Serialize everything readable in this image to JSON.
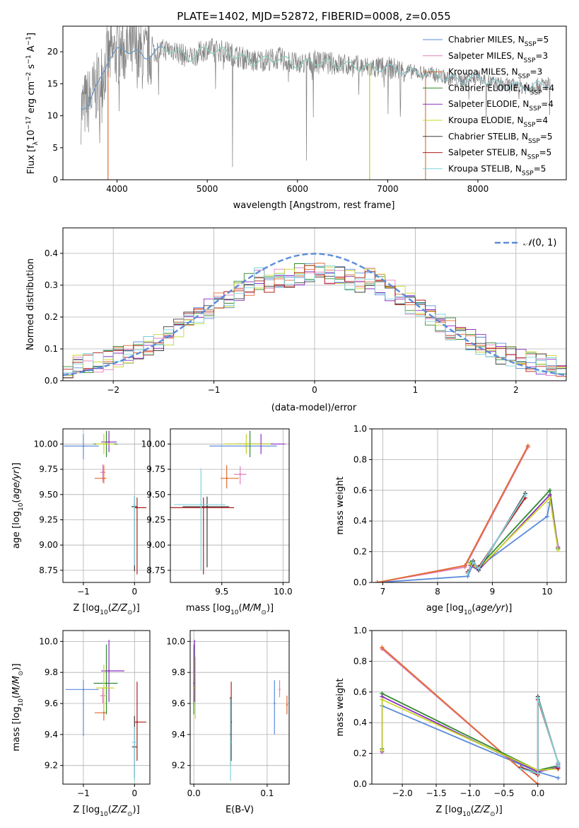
{
  "figure": {
    "title": "PLATE=1402, MJD=52872, FIBERID=0008, z=0.055"
  },
  "colors": {
    "chabrier_miles": "#5b8bd9",
    "salpeter_miles": "#e07fb8",
    "kroupa_miles": "#e06a30",
    "chabrier_elodie": "#2f8a2f",
    "salpeter_elodie": "#8e2ec2",
    "kroupa_elodie": "#c8d62a",
    "chabrier_stelib": "#3d3d3d",
    "salpeter_stelib": "#b01c1c",
    "kroupa_stelib": "#7fd3dc",
    "data": "#808080",
    "normal": "#5b8bd9",
    "grid": "#b0b0b0"
  },
  "chart_data": [
    {
      "type": "line",
      "id": "spectrum",
      "title": "PLATE=1402, MJD=52872, FIBERID=0008, z=0.055",
      "xlabel": "wavelength [Angstrom, rest frame]",
      "ylabel": "Flux [f_λ 10^-17 erg cm^-2 s^-1 A^-1]",
      "xlim": [
        3400,
        8980
      ],
      "ylim": [
        0,
        24
      ],
      "xticks": [
        4000,
        5000,
        6000,
        7000,
        8000
      ],
      "yticks": [
        0,
        5,
        10,
        15,
        20
      ],
      "grid": false,
      "legend_position": "upper right",
      "legend": [
        {
          "name": "Chabrier MILES",
          "nssp": "5"
        },
        {
          "name": "Salpeter MILES",
          "nssp": "3"
        },
        {
          "name": "Kroupa MILES",
          "nssp": "3"
        },
        {
          "name": "Chabrier ELODIE",
          "nssp": "4"
        },
        {
          "name": "Salpeter ELODIE",
          "nssp": "4"
        },
        {
          "name": "Kroupa ELODIE",
          "nssp": "4"
        },
        {
          "name": "Chabrier STELIB",
          "nssp": "5"
        },
        {
          "name": "Salpeter STELIB",
          "nssp": "5"
        },
        {
          "name": "Kroupa STELIB",
          "nssp": "5"
        }
      ],
      "continuum": {
        "x": [
          3600,
          3700,
          3800,
          3900,
          4000,
          4100,
          4200,
          4300,
          4400,
          4600,
          4800,
          5000,
          5200,
          5500,
          5800,
          6000,
          6200,
          6500,
          6800,
          7000,
          7200,
          7500,
          7800,
          8000,
          8200,
          8500,
          8800
        ],
        "y": [
          11,
          12.5,
          15,
          19,
          20,
          20.5,
          20,
          19,
          20,
          20.5,
          19,
          20.5,
          20,
          18.5,
          19,
          18,
          18.5,
          18,
          17.5,
          17.5,
          17,
          16.5,
          15.5,
          16,
          15,
          14.5,
          15
        ]
      },
      "model_ranges": {
        "miles_salpeter_kroupa": [
          3700,
          7420
        ],
        "elodie": [
          3900,
          6800
        ],
        "stelib_chabrier_miles": [
          3600,
          8800
        ]
      }
    },
    {
      "type": "line",
      "id": "residuals",
      "xlabel": "(data-model)/error",
      "ylabel": "Normed distribution",
      "xlim": [
        -2.5,
        2.5
      ],
      "ylim": [
        0,
        0.48
      ],
      "xticks": [
        -2,
        -1,
        0,
        1,
        2
      ],
      "yticks": [
        0.0,
        0.1,
        0.2,
        0.3,
        0.4
      ],
      "grid": true,
      "legend": [
        {
          "name": "N(0,1)"
        }
      ],
      "legend_position": "upper right",
      "bin_width": 0.1,
      "note_normal": "gaussian N(0,1) dashed"
    },
    {
      "type": "scatter",
      "id": "age_vs_Z",
      "xlabel": "Z [log10(Z/Z⊙)]",
      "ylabel": "age [log10(age/yr)]",
      "xlim": [
        -1.4,
        0.3
      ],
      "ylim": [
        8.63,
        10.15
      ],
      "xticks": [
        -1,
        0
      ],
      "yticks": [
        8.75,
        9.0,
        9.25,
        9.5,
        9.75,
        10.0
      ],
      "grid": true,
      "points": [
        {
          "model": "chabrier_miles",
          "x": -1.0,
          "y": 9.98,
          "xerr": [
            0.38,
            0.3
          ],
          "yerr": [
            0.13,
            0.12
          ]
        },
        {
          "model": "salpeter_miles",
          "x": -0.62,
          "y": 9.72,
          "xerr": [
            0.05,
            0.05
          ],
          "yerr": [
            0.1,
            0.08
          ]
        },
        {
          "model": "kroupa_miles",
          "x": -0.6,
          "y": 9.66,
          "xerr": [
            0.18,
            0.05
          ],
          "yerr": [
            0.05,
            0.13
          ]
        },
        {
          "model": "chabrier_elodie",
          "x": -0.55,
          "y": 10.0,
          "xerr": [
            0.25,
            0.22
          ],
          "yerr": [
            0.13,
            0.13
          ]
        },
        {
          "model": "salpeter_elodie",
          "x": -0.5,
          "y": 10.02,
          "xerr": [
            0.15,
            0.15
          ],
          "yerr": [
            0.1,
            0.11
          ]
        },
        {
          "model": "kroupa_elodie",
          "x": -0.6,
          "y": 10.0,
          "xerr": [
            0.15,
            0.2
          ],
          "yerr": [
            0.1,
            0.1
          ]
        },
        {
          "model": "chabrier_stelib",
          "x": 0.0,
          "y": 9.38,
          "xerr": [
            0.06,
            0.05
          ],
          "yerr": [
            0.64,
            0.1
          ]
        },
        {
          "model": "salpeter_stelib",
          "x": 0.05,
          "y": 9.37,
          "xerr": [
            0.05,
            0.18
          ],
          "yerr": [
            0.66,
            0.1
          ]
        },
        {
          "model": "kroupa_stelib",
          "x": 0.0,
          "y": 9.4,
          "xerr": [
            0.02,
            0.02
          ],
          "yerr": [
            0.6,
            0.08
          ]
        }
      ]
    },
    {
      "type": "scatter",
      "id": "age_vs_mass",
      "xlabel": "mass [log10(M/M⊙)]",
      "ylabel": "",
      "xlim": [
        9.08,
        10.05
      ],
      "ylim": [
        8.63,
        10.15
      ],
      "xticks": [
        9.5,
        10.0
      ],
      "yticks": [
        8.75,
        9.0,
        9.25,
        9.5,
        9.75,
        10.0
      ],
      "grid": true,
      "points": [
        {
          "model": "chabrier_miles",
          "x": 9.7,
          "y": 9.98,
          "xerr": [
            0.3,
            0.25
          ],
          "yerr": [
            0.03,
            0.03
          ]
        },
        {
          "model": "salpeter_miles",
          "x": 9.65,
          "y": 9.7,
          "xerr": [
            0.05,
            0.05
          ],
          "yerr": [
            0.1,
            0.08
          ]
        },
        {
          "model": "kroupa_miles",
          "x": 9.54,
          "y": 9.66,
          "xerr": [
            0.05,
            0.1
          ],
          "yerr": [
            0.1,
            0.13
          ]
        },
        {
          "model": "chabrier_elodie",
          "x": 9.73,
          "y": 10.0,
          "xerr": [
            0.2,
            0.2
          ],
          "yerr": [
            0.13,
            0.13
          ]
        },
        {
          "model": "salpeter_elodie",
          "x": 9.82,
          "y": 10.0,
          "xerr": [
            0.2,
            0.2
          ],
          "yerr": [
            0.1,
            0.1
          ]
        },
        {
          "model": "kroupa_elodie",
          "x": 9.7,
          "y": 10.0,
          "xerr": [
            0.18,
            0.2
          ],
          "yerr": [
            0.1,
            0.1
          ]
        },
        {
          "model": "chabrier_stelib",
          "x": 9.38,
          "y": 9.38,
          "xerr": [
            0.2,
            0.18
          ],
          "yerr": [
            0.6,
            0.1
          ]
        },
        {
          "model": "salpeter_stelib",
          "x": 9.35,
          "y": 9.37,
          "xerr": [
            0.28,
            0.25
          ],
          "yerr": [
            0.66,
            0.1
          ]
        },
        {
          "model": "kroupa_stelib",
          "x": 9.33,
          "y": 9.4,
          "xerr": [
            0.22,
            0.2
          ],
          "yerr": [
            0.65,
            0.36
          ]
        }
      ]
    },
    {
      "type": "line",
      "id": "weight_vs_age",
      "xlabel": "age [log10(age/yr)]",
      "ylabel": "mass weight",
      "xlim": [
        6.8,
        10.35
      ],
      "ylim": [
        0,
        1.0
      ],
      "xticks": [
        7,
        8,
        9,
        10
      ],
      "yticks": [
        0.0,
        0.2,
        0.4,
        0.6,
        0.8,
        1.0
      ],
      "grid": true,
      "series": [
        {
          "model": "chabrier_miles",
          "x": [
            6.9,
            8.55,
            8.65,
            8.75,
            10.0,
            10.05
          ],
          "y": [
            0.0,
            0.04,
            0.12,
            0.1,
            0.43,
            0.52
          ]
        },
        {
          "model": "salpeter_miles",
          "x": [
            6.9,
            8.5,
            9.65
          ],
          "y": [
            0.0,
            0.1,
            0.88
          ]
        },
        {
          "model": "kroupa_miles",
          "x": [
            6.9,
            8.5,
            9.65
          ],
          "y": [
            0.0,
            0.11,
            0.89
          ]
        },
        {
          "model": "chabrier_elodie",
          "x": [
            8.6,
            8.75,
            10.05,
            10.2
          ],
          "y": [
            0.13,
            0.1,
            0.6,
            0.22
          ]
        },
        {
          "model": "salpeter_elodie",
          "x": [
            8.6,
            8.75,
            10.05,
            10.2
          ],
          "y": [
            0.11,
            0.08,
            0.57,
            0.23
          ]
        },
        {
          "model": "kroupa_elodie",
          "x": [
            8.6,
            8.75,
            10.05,
            10.2
          ],
          "y": [
            0.12,
            0.09,
            0.55,
            0.21
          ]
        },
        {
          "model": "chabrier_stelib",
          "x": [
            8.55,
            8.65,
            8.75,
            9.6
          ],
          "y": [
            0.06,
            0.14,
            0.08,
            0.58
          ]
        },
        {
          "model": "salpeter_stelib",
          "x": [
            8.55,
            8.65,
            8.75,
            9.6
          ],
          "y": [
            0.07,
            0.12,
            0.1,
            0.55
          ]
        },
        {
          "model": "kroupa_stelib",
          "x": [
            8.55,
            8.65,
            8.75,
            9.6
          ],
          "y": [
            0.06,
            0.13,
            0.09,
            0.57
          ]
        }
      ]
    },
    {
      "type": "scatter",
      "id": "mass_vs_Z",
      "xlabel": "Z [log10(Z/Z⊙)]",
      "ylabel": "mass [log10(M/M⊙)]",
      "xlim": [
        -1.4,
        0.3
      ],
      "ylim": [
        9.08,
        10.07
      ],
      "xticks": [
        -1,
        0
      ],
      "yticks": [
        9.2,
        9.4,
        9.6,
        9.8,
        10.0
      ],
      "grid": true,
      "points": [
        {
          "model": "chabrier_miles",
          "x": -1.0,
          "y": 9.69,
          "xerr": [
            0.35,
            0.3
          ],
          "yerr": [
            0.3,
            0.06
          ]
        },
        {
          "model": "salpeter_miles",
          "x": -0.62,
          "y": 9.65,
          "xerr": [
            0.05,
            0.05
          ],
          "yerr": [
            0.05,
            0.05
          ]
        },
        {
          "model": "kroupa_miles",
          "x": -0.6,
          "y": 9.54,
          "xerr": [
            0.18,
            0.05
          ],
          "yerr": [
            0.05,
            0.1
          ]
        },
        {
          "model": "chabrier_elodie",
          "x": -0.55,
          "y": 9.73,
          "xerr": [
            0.25,
            0.22
          ],
          "yerr": [
            0.2,
            0.25
          ]
        },
        {
          "model": "salpeter_elodie",
          "x": -0.5,
          "y": 9.81,
          "xerr": [
            0.15,
            0.3
          ],
          "yerr": [
            0.2,
            0.2
          ]
        },
        {
          "model": "kroupa_elodie",
          "x": -0.6,
          "y": 9.7,
          "xerr": [
            0.15,
            0.2
          ],
          "yerr": [
            0.15,
            0.15
          ]
        },
        {
          "model": "chabrier_stelib",
          "x": 0.0,
          "y": 9.32,
          "xerr": [
            0.05,
            0.05
          ],
          "yerr": [
            0.2,
            0.2
          ]
        },
        {
          "model": "salpeter_stelib",
          "x": 0.05,
          "y": 9.48,
          "xerr": [
            0.05,
            0.18
          ],
          "yerr": [
            0.25,
            0.26
          ]
        },
        {
          "model": "kroupa_stelib",
          "x": 0.0,
          "y": 9.35,
          "xerr": [
            0.05,
            0.05
          ],
          "yerr": [
            0.25,
            0.1
          ]
        }
      ]
    },
    {
      "type": "scatter",
      "id": "mass_vs_ebv",
      "xlabel": "E(B-V)",
      "ylabel": "",
      "xlim": [
        -0.005,
        0.13
      ],
      "ylim": [
        9.08,
        10.07
      ],
      "xticks": [
        0.0,
        0.1
      ],
      "yticks": [
        9.2,
        9.4,
        9.6,
        9.8,
        10.0
      ],
      "grid": true,
      "points": [
        {
          "model": "chabrier_miles",
          "x": 0.11,
          "y": 9.6,
          "yerr": [
            0.2,
            0.15
          ]
        },
        {
          "model": "salpeter_miles",
          "x": 0.117,
          "y": 9.69,
          "yerr": [
            0.05,
            0.06
          ]
        },
        {
          "model": "kroupa_miles",
          "x": 0.127,
          "y": 9.59,
          "yerr": [
            0.06,
            0.06
          ]
        },
        {
          "model": "chabrier_elodie",
          "x": 0.0,
          "y": 9.73,
          "yerr": [
            0.2,
            0.25
          ]
        },
        {
          "model": "salpeter_elodie",
          "x": 0.001,
          "y": 9.81,
          "yerr": [
            0.2,
            0.2
          ]
        },
        {
          "model": "kroupa_elodie",
          "x": 0.002,
          "y": 9.7,
          "yerr": [
            0.2,
            0.2
          ]
        },
        {
          "model": "chabrier_stelib",
          "x": 0.05,
          "y": 9.4,
          "yerr": [
            0.2,
            0.24
          ]
        },
        {
          "model": "salpeter_stelib",
          "x": 0.051,
          "y": 9.48,
          "yerr": [
            0.25,
            0.26
          ]
        },
        {
          "model": "kroupa_stelib",
          "x": 0.05,
          "y": 9.35,
          "yerr": [
            0.25,
            0.28
          ]
        }
      ]
    },
    {
      "type": "line",
      "id": "weight_vs_Z",
      "xlabel": "Z [log10(Z/Z⊙)]",
      "ylabel": "mass weight",
      "xlim": [
        -2.45,
        0.42
      ],
      "ylim": [
        0,
        1.0
      ],
      "xticks": [
        -2.0,
        -1.5,
        -1.0,
        -0.5,
        0.0
      ],
      "yticks": [
        0.0,
        0.2,
        0.4,
        0.6,
        0.8,
        1.0
      ],
      "grid": true,
      "series": [
        {
          "model": "chabrier_miles",
          "x": [
            -2.3,
            0.0,
            0.3
          ],
          "y": [
            0.51,
            0.08,
            0.04
          ]
        },
        {
          "model": "salpeter_miles",
          "x": [
            -2.3,
            0.0
          ],
          "y": [
            0.88,
            0.0
          ]
        },
        {
          "model": "kroupa_miles",
          "x": [
            -2.3,
            0.0
          ],
          "y": [
            0.89,
            0.0
          ]
        },
        {
          "model": "chabrier_elodie",
          "x": [
            -2.3,
            -2.3,
            0.0,
            0.3,
            0.3
          ],
          "y": [
            0.23,
            0.59,
            0.09,
            0.12,
            0.14
          ]
        },
        {
          "model": "salpeter_elodie",
          "x": [
            -2.3,
            -2.3,
            0.0,
            0.3,
            0.3
          ],
          "y": [
            0.21,
            0.57,
            0.08,
            0.11,
            0.13
          ]
        },
        {
          "model": "kroupa_elodie",
          "x": [
            -2.3,
            -2.3,
            0.0,
            0.3,
            0.3
          ],
          "y": [
            0.22,
            0.55,
            0.09,
            0.1,
            0.12
          ]
        },
        {
          "model": "chabrier_stelib",
          "x": [
            -0.25,
            0.0,
            0.0,
            0.3,
            0.3
          ],
          "y": [
            0.11,
            0.07,
            0.57,
            0.14,
            0.1
          ]
        },
        {
          "model": "salpeter_stelib",
          "x": [
            -0.25,
            0.0,
            0.0,
            0.3,
            0.3
          ],
          "y": [
            0.11,
            0.06,
            0.55,
            0.14,
            0.1
          ]
        },
        {
          "model": "kroupa_stelib",
          "x": [
            -0.25,
            0.0,
            0.0,
            0.3,
            0.3
          ],
          "y": [
            0.1,
            0.07,
            0.56,
            0.14,
            0.12
          ]
        }
      ]
    }
  ]
}
